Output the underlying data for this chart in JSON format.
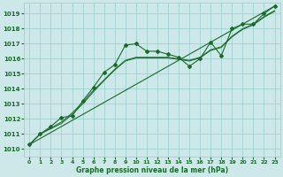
{
  "xlabel": "Graphe pression niveau de la mer (hPa)",
  "bg_color": "#cce8e8",
  "grid_color": "#99cccc",
  "line_color": "#1a6b2a",
  "ylim": [
    1009.5,
    1019.7
  ],
  "xlim": [
    -0.5,
    23.5
  ],
  "yticks": [
    1010,
    1011,
    1012,
    1013,
    1014,
    1015,
    1016,
    1017,
    1018,
    1019
  ],
  "xticks": [
    0,
    1,
    2,
    3,
    4,
    5,
    6,
    7,
    8,
    9,
    10,
    11,
    12,
    13,
    14,
    15,
    16,
    17,
    18,
    19,
    20,
    21,
    22,
    23
  ],
  "series_main": {
    "x": [
      0,
      1,
      2,
      3,
      4,
      5,
      6,
      7,
      8,
      9,
      10,
      11,
      12,
      13,
      14,
      15,
      16,
      17,
      18,
      19,
      20,
      21,
      22,
      23
    ],
    "y": [
      1010.3,
      1011.0,
      1011.5,
      1012.1,
      1012.2,
      1013.2,
      1014.1,
      1015.1,
      1015.6,
      1016.9,
      1017.0,
      1016.5,
      1016.5,
      1016.3,
      1016.1,
      1015.5,
      1016.0,
      1017.1,
      1016.2,
      1018.0,
      1018.3,
      1018.3,
      1019.0,
      1019.5
    ]
  },
  "series_smooth1": {
    "x": [
      0,
      1,
      2,
      3,
      4,
      5,
      6,
      7,
      8,
      9,
      10,
      11,
      12,
      13,
      14,
      15,
      16,
      17,
      18,
      19,
      20,
      21,
      22,
      23
    ],
    "y": [
      1010.3,
      1011.0,
      1011.4,
      1011.8,
      1012.4,
      1013.1,
      1013.9,
      1014.6,
      1015.3,
      1015.9,
      1016.1,
      1016.1,
      1016.1,
      1016.1,
      1016.0,
      1015.9,
      1016.1,
      1016.6,
      1016.8,
      1017.5,
      1018.0,
      1018.3,
      1018.8,
      1019.2
    ]
  },
  "series_smooth2": {
    "x": [
      0,
      1,
      2,
      3,
      4,
      5,
      6,
      7,
      8,
      9,
      10,
      11,
      12,
      13,
      14,
      15,
      16,
      17,
      18,
      19,
      20,
      21,
      22,
      23
    ],
    "y": [
      1010.3,
      1011.0,
      1011.35,
      1011.7,
      1012.3,
      1013.0,
      1013.8,
      1014.55,
      1015.25,
      1015.85,
      1016.05,
      1016.05,
      1016.05,
      1016.05,
      1015.95,
      1015.85,
      1016.05,
      1016.55,
      1016.75,
      1017.45,
      1017.95,
      1018.25,
      1018.75,
      1019.15
    ]
  },
  "series_linear": {
    "x": [
      0,
      23
    ],
    "y": [
      1010.3,
      1019.5
    ]
  }
}
